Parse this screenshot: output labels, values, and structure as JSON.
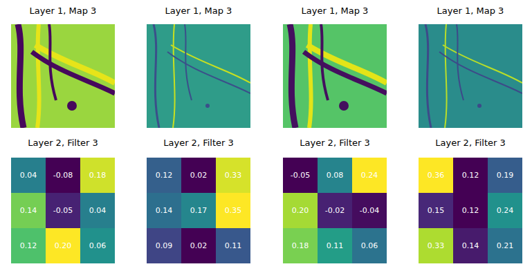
{
  "chart_data": [
    {
      "type": "image",
      "title": "Layer 1, Map 3"
    },
    {
      "type": "image",
      "title": "Layer 1, Map 3"
    },
    {
      "type": "image",
      "title": "Layer 1, Map 3"
    },
    {
      "type": "image",
      "title": "Layer 1, Map 3"
    },
    {
      "type": "heatmap",
      "title": "Layer 2, Filter 3",
      "data_labels": true,
      "tick_labels": false,
      "cells": [
        [
          0.04,
          -0.08,
          0.18
        ],
        [
          0.14,
          -0.05,
          0.04
        ],
        [
          0.12,
          0.2,
          0.06
        ]
      ],
      "value_labels": [
        [
          "0.04",
          "-0.08",
          "0.18"
        ],
        [
          "0.14",
          "-0.05",
          "0.04"
        ],
        [
          "0.12",
          "0.20",
          "0.06"
        ]
      ]
    },
    {
      "type": "heatmap",
      "title": "Layer 2, Filter 3",
      "data_labels": true,
      "tick_labels": false,
      "cells": [
        [
          0.12,
          0.02,
          0.33
        ],
        [
          0.14,
          0.17,
          0.35
        ],
        [
          0.09,
          0.02,
          0.11
        ]
      ],
      "value_labels": [
        [
          "0.12",
          "0.02",
          "0.33"
        ],
        [
          "0.14",
          "0.17",
          "0.35"
        ],
        [
          "0.09",
          "0.02",
          "0.11"
        ]
      ]
    },
    {
      "type": "heatmap",
      "title": "Layer 2, Filter 3",
      "data_labels": true,
      "tick_labels": false,
      "cells": [
        [
          -0.05,
          0.08,
          0.24
        ],
        [
          0.2,
          -0.02,
          -0.04
        ],
        [
          0.18,
          0.11,
          0.06
        ]
      ],
      "value_labels": [
        [
          "-0.05",
          "0.08",
          "0.24"
        ],
        [
          "0.20",
          "-0.02",
          "-0.04"
        ],
        [
          "0.18",
          "0.11",
          "0.06"
        ]
      ]
    },
    {
      "type": "heatmap",
      "title": "Layer 2, Filter 3",
      "data_labels": true,
      "tick_labels": false,
      "cells": [
        [
          0.36,
          0.12,
          0.19
        ],
        [
          0.15,
          0.12,
          0.24
        ],
        [
          0.33,
          0.14,
          0.21
        ]
      ],
      "value_labels": [
        [
          "0.36",
          "0.12",
          "0.19"
        ],
        [
          "0.15",
          "0.12",
          "0.24"
        ],
        [
          "0.33",
          "0.14",
          "0.21"
        ]
      ]
    }
  ]
}
